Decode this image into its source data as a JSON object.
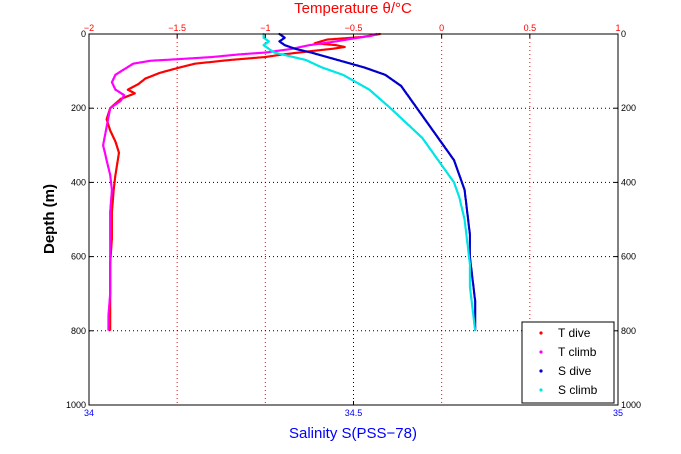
{
  "chart_data": {
    "type": "scatter",
    "top_xlabel": "Temperature θ/°C",
    "bottom_xlabel": "Salinity S(PSS−78)",
    "ylabel": "Depth (m)",
    "top_xlim": [
      -2,
      1
    ],
    "bottom_xlim": [
      34,
      35
    ],
    "ylim": [
      0,
      1000
    ],
    "y_reversed": true,
    "top_ticks": [
      "−2",
      "−1.5",
      "−1",
      "−0.5",
      "0",
      "0.5",
      "1"
    ],
    "bottom_ticks": [
      "34",
      "34.5",
      "35"
    ],
    "y_ticks": [
      "0",
      "200",
      "400",
      "600",
      "800",
      "1000"
    ],
    "grid": "dotted",
    "legend_position": "bottom-right",
    "colors": {
      "axis_text_top": "#ff0000",
      "axis_text_bottom": "#0000ff",
      "grid": "#000000",
      "temperature_grid": "#ff0000",
      "salinity_grid": "#000000"
    },
    "series": [
      {
        "name": "T dive",
        "axis": "temperature",
        "color": "#ff0000",
        "points": [
          [
            -0.35,
            0
          ],
          [
            -0.45,
            8
          ],
          [
            -0.65,
            15
          ],
          [
            -0.72,
            25
          ],
          [
            -0.6,
            30
          ],
          [
            -0.55,
            35
          ],
          [
            -0.62,
            40
          ],
          [
            -0.72,
            45
          ],
          [
            -0.9,
            55
          ],
          [
            -1.0,
            62
          ],
          [
            -1.2,
            70
          ],
          [
            -1.4,
            80
          ],
          [
            -1.5,
            92
          ],
          [
            -1.6,
            105
          ],
          [
            -1.68,
            120
          ],
          [
            -1.72,
            135
          ],
          [
            -1.78,
            150
          ],
          [
            -1.74,
            160
          ],
          [
            -1.82,
            175
          ],
          [
            -1.88,
            200
          ],
          [
            -1.9,
            230
          ],
          [
            -1.88,
            260
          ],
          [
            -1.85,
            290
          ],
          [
            -1.83,
            320
          ],
          [
            -1.84,
            350
          ],
          [
            -1.85,
            380
          ],
          [
            -1.86,
            420
          ],
          [
            -1.87,
            480
          ],
          [
            -1.87,
            550
          ],
          [
            -1.88,
            620
          ],
          [
            -1.88,
            700
          ],
          [
            -1.88,
            760
          ],
          [
            -1.88,
            800
          ]
        ]
      },
      {
        "name": "T climb",
        "axis": "temperature",
        "color": "#ff00ff",
        "points": [
          [
            -0.37,
            0
          ],
          [
            -0.4,
            5
          ],
          [
            -0.5,
            12
          ],
          [
            -0.6,
            20
          ],
          [
            -0.75,
            30
          ],
          [
            -0.85,
            40
          ],
          [
            -1.0,
            50
          ],
          [
            -1.15,
            55
          ],
          [
            -1.3,
            62
          ],
          [
            -1.5,
            68
          ],
          [
            -1.65,
            72
          ],
          [
            -1.75,
            80
          ],
          [
            -1.8,
            95
          ],
          [
            -1.85,
            110
          ],
          [
            -1.87,
            130
          ],
          [
            -1.85,
            150
          ],
          [
            -1.8,
            165
          ],
          [
            -1.82,
            180
          ],
          [
            -1.88,
            200
          ],
          [
            -1.9,
            250
          ],
          [
            -1.92,
            300
          ],
          [
            -1.9,
            340
          ],
          [
            -1.88,
            380
          ],
          [
            -1.87,
            420
          ],
          [
            -1.88,
            480
          ],
          [
            -1.88,
            550
          ],
          [
            -1.88,
            620
          ],
          [
            -1.88,
            700
          ],
          [
            -1.89,
            760
          ],
          [
            -1.89,
            800
          ]
        ]
      },
      {
        "name": "S dive",
        "axis": "salinity",
        "color": "#0000cc",
        "points": [
          [
            34.36,
            0
          ],
          [
            34.37,
            10
          ],
          [
            34.36,
            20
          ],
          [
            34.37,
            30
          ],
          [
            34.39,
            40
          ],
          [
            34.42,
            50
          ],
          [
            34.47,
            70
          ],
          [
            34.52,
            90
          ],
          [
            34.56,
            110
          ],
          [
            34.59,
            140
          ],
          [
            34.61,
            180
          ],
          [
            34.63,
            220
          ],
          [
            34.65,
            260
          ],
          [
            34.67,
            300
          ],
          [
            34.69,
            340
          ],
          [
            34.7,
            380
          ],
          [
            34.71,
            420
          ],
          [
            34.715,
            480
          ],
          [
            34.72,
            540
          ],
          [
            34.72,
            600
          ],
          [
            34.725,
            660
          ],
          [
            34.73,
            720
          ],
          [
            34.73,
            780
          ],
          [
            34.73,
            800
          ]
        ]
      },
      {
        "name": "S climb",
        "axis": "salinity",
        "color": "#00e5e5",
        "points": [
          [
            34.33,
            0
          ],
          [
            34.33,
            10
          ],
          [
            34.34,
            20
          ],
          [
            34.33,
            30
          ],
          [
            34.34,
            40
          ],
          [
            34.35,
            50
          ],
          [
            34.38,
            60
          ],
          [
            34.41,
            70
          ],
          [
            34.44,
            90
          ],
          [
            34.48,
            110
          ],
          [
            34.53,
            150
          ],
          [
            34.57,
            200
          ],
          [
            34.6,
            240
          ],
          [
            34.63,
            280
          ],
          [
            34.65,
            320
          ],
          [
            34.67,
            360
          ],
          [
            34.69,
            400
          ],
          [
            34.7,
            440
          ],
          [
            34.71,
            500
          ],
          [
            34.715,
            560
          ],
          [
            34.72,
            620
          ],
          [
            34.72,
            680
          ],
          [
            34.725,
            740
          ],
          [
            34.73,
            800
          ]
        ]
      }
    ]
  }
}
